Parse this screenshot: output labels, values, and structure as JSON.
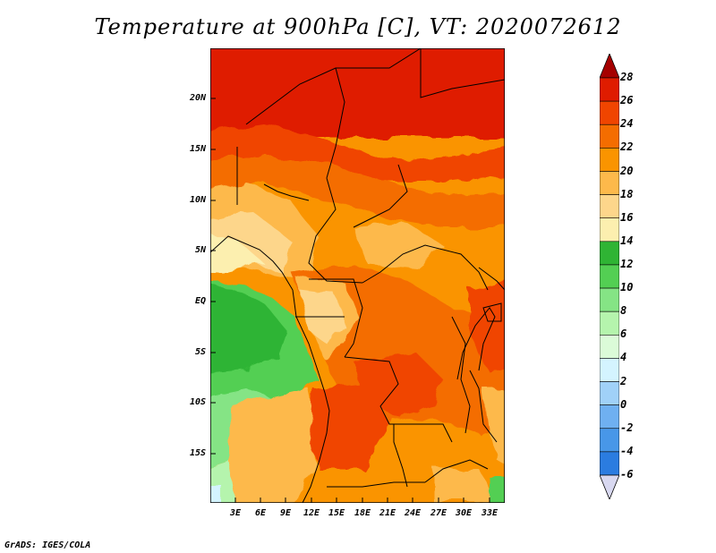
{
  "title": "Temperature at 900hPa [C], VT: 2020072612",
  "credit": "GrADS: IGES/COLA",
  "map": {
    "variable": "Temperature",
    "level": "900hPa",
    "unit": "C",
    "valid_time": "2020072612",
    "lon_labels": [
      "3E",
      "6E",
      "9E",
      "12E",
      "15E",
      "18E",
      "21E",
      "24E",
      "27E",
      "30E",
      "33E"
    ],
    "lat_labels": [
      "20N",
      "15N",
      "10N",
      "5N",
      "EQ",
      "5S",
      "10S",
      "15S"
    ]
  },
  "colorbar": {
    "labels": [
      "28",
      "26",
      "24",
      "22",
      "20",
      "18",
      "16",
      "14",
      "12",
      "10",
      "8",
      "6",
      "4",
      "2",
      "0",
      "-2",
      "-4",
      "-6"
    ],
    "colors": [
      "#a50000",
      "#df1c00",
      "#f04500",
      "#f46d00",
      "#fa9400",
      "#fdb94b",
      "#fdd68b",
      "#fcefaf",
      "#2fb434",
      "#53cf53",
      "#85e485",
      "#b5f4ad",
      "#dbfbd8",
      "#d4f4ff",
      "#a0d1f8",
      "#6fb0f1",
      "#4897e8",
      "#2b7ce0",
      "#1c5fcc",
      "#1446ae",
      "#0c2c8a",
      "#061066",
      "#d8d8f0"
    ]
  }
}
